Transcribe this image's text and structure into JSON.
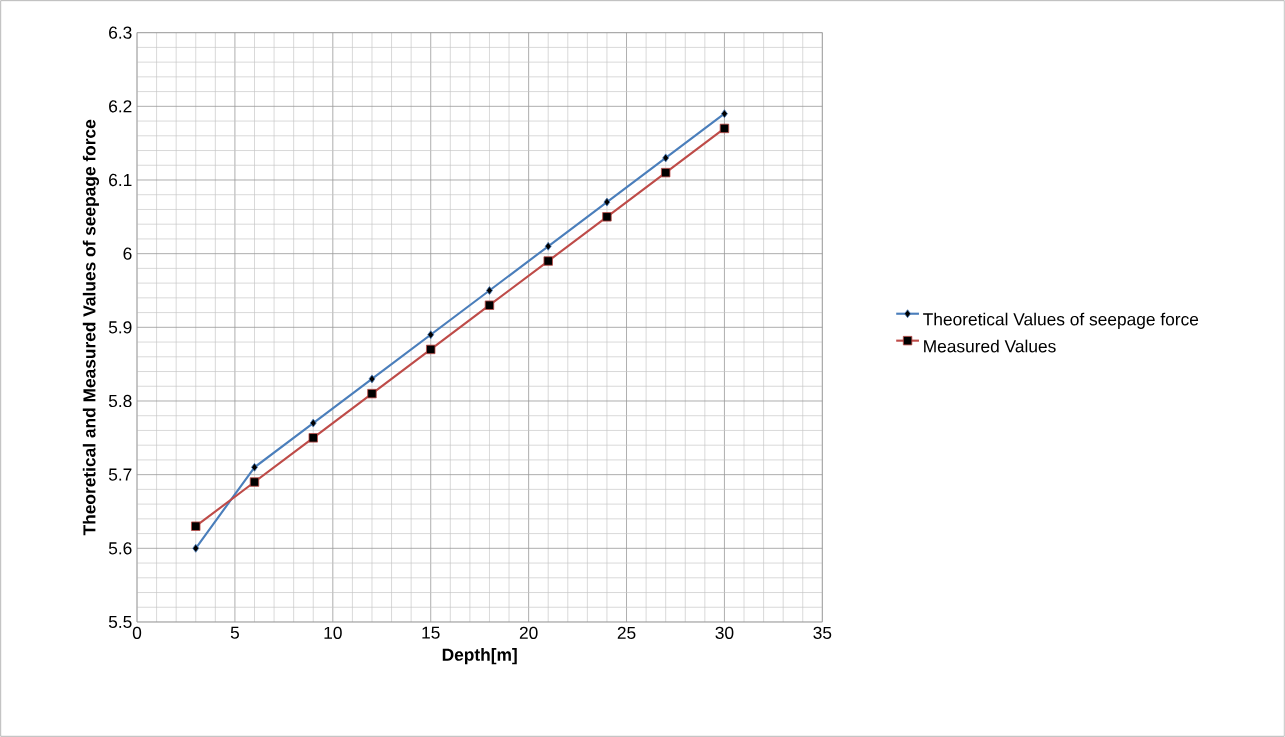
{
  "chart_data": {
    "type": "line",
    "xlabel": "Depth[m]",
    "ylabel": "Theoretical and Measured Values of seepage force",
    "x": [
      3,
      6,
      9,
      12,
      15,
      18,
      21,
      24,
      27,
      30
    ],
    "series": [
      {
        "name": "Theoretical Values  of seepage force",
        "color": "#4a7ebb",
        "marker": "diamond",
        "values": [
          5.6,
          5.71,
          5.77,
          5.83,
          5.89,
          5.95,
          6.01,
          6.07,
          6.13,
          6.19
        ]
      },
      {
        "name": "Measured Values",
        "color": "#be4b48",
        "marker": "square",
        "values": [
          5.63,
          5.69,
          5.75,
          5.81,
          5.87,
          5.93,
          5.99,
          6.05,
          6.11,
          6.17
        ]
      }
    ],
    "xlim": [
      0,
      35
    ],
    "xticks": [
      0,
      5,
      10,
      15,
      20,
      25,
      30,
      35
    ],
    "ylim": [
      5.5,
      6.3
    ],
    "yticks": [
      5.5,
      5.6,
      5.7,
      5.8,
      5.9,
      {
        "value": 6.0,
        "label": "6"
      },
      6.1,
      6.2,
      6.3
    ],
    "grid": true,
    "legend": "right",
    "line_style": "solid"
  }
}
